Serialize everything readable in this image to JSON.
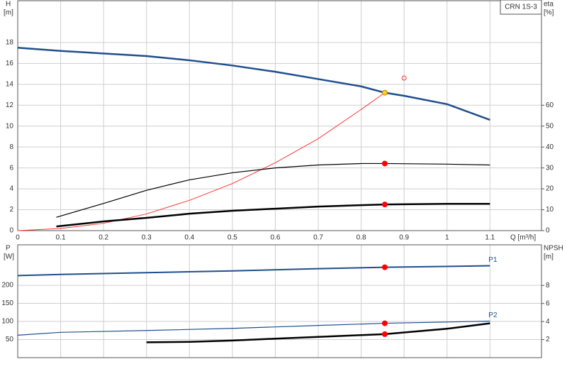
{
  "chart_data": [
    {
      "type": "line",
      "label": "CRN 1S-3",
      "y_label": "H",
      "y_unit": "[m]",
      "y2_label": "eta",
      "y2_unit": "[%]",
      "x_label": "Q [m³/h]",
      "xlim": [
        0,
        1.22
      ],
      "xticks": [
        0,
        0.1,
        0.2,
        0.3,
        0.4,
        0.5,
        0.6,
        0.7,
        0.8,
        0.9,
        1.0,
        1.1
      ],
      "show_x_tick_labels": true,
      "ylim": [
        0,
        22
      ],
      "yticks": [
        0,
        2,
        4,
        6,
        8,
        10,
        12,
        14,
        16,
        18
      ],
      "y2lim": [
        0,
        110
      ],
      "y2ticks": [
        0,
        10,
        20,
        30,
        40,
        50,
        60
      ],
      "grid": true,
      "series": [
        {
          "color": "#1f4e8c",
          "width": 2.5,
          "axis": "y",
          "x": [
            0,
            0.1,
            0.3,
            0.4,
            0.5,
            0.6,
            0.7,
            0.8,
            0.855,
            0.9,
            1.0,
            1.1
          ],
          "values": [
            17.5,
            17.2,
            16.7,
            16.3,
            15.8,
            15.2,
            14.5,
            13.8,
            13.2,
            12.9,
            12.1,
            10.6
          ]
        },
        {
          "color": "#ff3333",
          "width": 1,
          "axis": "y",
          "x": [
            0,
            0.1,
            0.2,
            0.3,
            0.4,
            0.5,
            0.6,
            0.7,
            0.8,
            0.855
          ],
          "values": [
            0,
            0.2,
            0.7,
            1.6,
            2.9,
            4.5,
            6.5,
            8.8,
            11.6,
            13.2
          ]
        },
        {
          "color": "#000000",
          "width": 1.2,
          "axis": "y2",
          "x": [
            0.09,
            0.2,
            0.3,
            0.4,
            0.5,
            0.6,
            0.7,
            0.8,
            0.855,
            1.0,
            1.1
          ],
          "values": [
            6.4,
            13,
            19.3,
            24.3,
            27.7,
            30,
            31.4,
            32.1,
            32.1,
            31.8,
            31.4
          ]
        },
        {
          "color": "#000000",
          "width": 2.5,
          "axis": "y2",
          "x": [
            0.09,
            0.2,
            0.3,
            0.4,
            0.5,
            0.6,
            0.7,
            0.8,
            0.855,
            1.0,
            1.1
          ],
          "values": [
            2,
            4.4,
            6.1,
            8.1,
            9.5,
            10.5,
            11.5,
            12.2,
            12.5,
            12.8,
            12.8
          ]
        }
      ],
      "points": [
        {
          "x": 0.855,
          "y": 13.2,
          "axis": "y",
          "color": "#ffd21f",
          "stroke": "#c08000",
          "filled": true
        },
        {
          "x": 0.9,
          "y": 14.6,
          "axis": "y",
          "color": "#ff3333",
          "stroke": "#ff3333",
          "filled": false
        },
        {
          "x": 0.855,
          "y": 32.1,
          "axis": "y2",
          "color": "#ff0000",
          "stroke": "#ff0000",
          "filled": true
        },
        {
          "x": 0.855,
          "y": 12.5,
          "axis": "y2",
          "color": "#ff0000",
          "stroke": "#ff0000",
          "filled": true
        }
      ]
    },
    {
      "type": "line",
      "y_label": "P",
      "y_unit": "[W]",
      "y2_label": "NPSH",
      "y2_unit": "[m]",
      "xlim": [
        0,
        1.22
      ],
      "xticks": [
        0,
        0.1,
        0.2,
        0.3,
        0.4,
        0.5,
        0.6,
        0.7,
        0.8,
        0.9,
        1.0,
        1.1
      ],
      "show_x_tick_labels": false,
      "ylim": [
        0,
        312
      ],
      "yticks": [
        50,
        100,
        150,
        200
      ],
      "y2lim": [
        0,
        12.5
      ],
      "y2ticks": [
        2,
        4,
        6,
        8
      ],
      "grid": true,
      "series": [
        {
          "name": "P1",
          "color": "#1f4e8c",
          "width": 2,
          "axis": "y",
          "x": [
            0,
            0.1,
            0.3,
            0.5,
            0.7,
            0.855,
            1.1
          ],
          "values": [
            227,
            230,
            235,
            240,
            246,
            250,
            254
          ]
        },
        {
          "name": "P2",
          "color": "#1f4e8c",
          "width": 1.2,
          "axis": "y",
          "x": [
            0,
            0.1,
            0.3,
            0.5,
            0.7,
            0.855,
            1.1
          ],
          "values": [
            62,
            70,
            75,
            81,
            89,
            95,
            101
          ]
        },
        {
          "color": "#000000",
          "width": 2.5,
          "axis": "y2",
          "x": [
            0.3,
            0.4,
            0.5,
            0.6,
            0.7,
            0.8,
            0.855,
            1.0,
            1.1
          ],
          "values": [
            1.7,
            1.75,
            1.9,
            2.1,
            2.3,
            2.5,
            2.6,
            3.2,
            3.8
          ]
        }
      ],
      "points": [
        {
          "x": 0.855,
          "y": 250,
          "axis": "y",
          "color": "#ff0000",
          "stroke": "#ff0000",
          "filled": true
        },
        {
          "x": 0.855,
          "y": 95,
          "axis": "y",
          "color": "#ff0000",
          "stroke": "#ff0000",
          "filled": true
        },
        {
          "x": 0.855,
          "y": 2.6,
          "axis": "y2",
          "color": "#ff0000",
          "stroke": "#ff0000",
          "filled": true
        }
      ]
    }
  ]
}
